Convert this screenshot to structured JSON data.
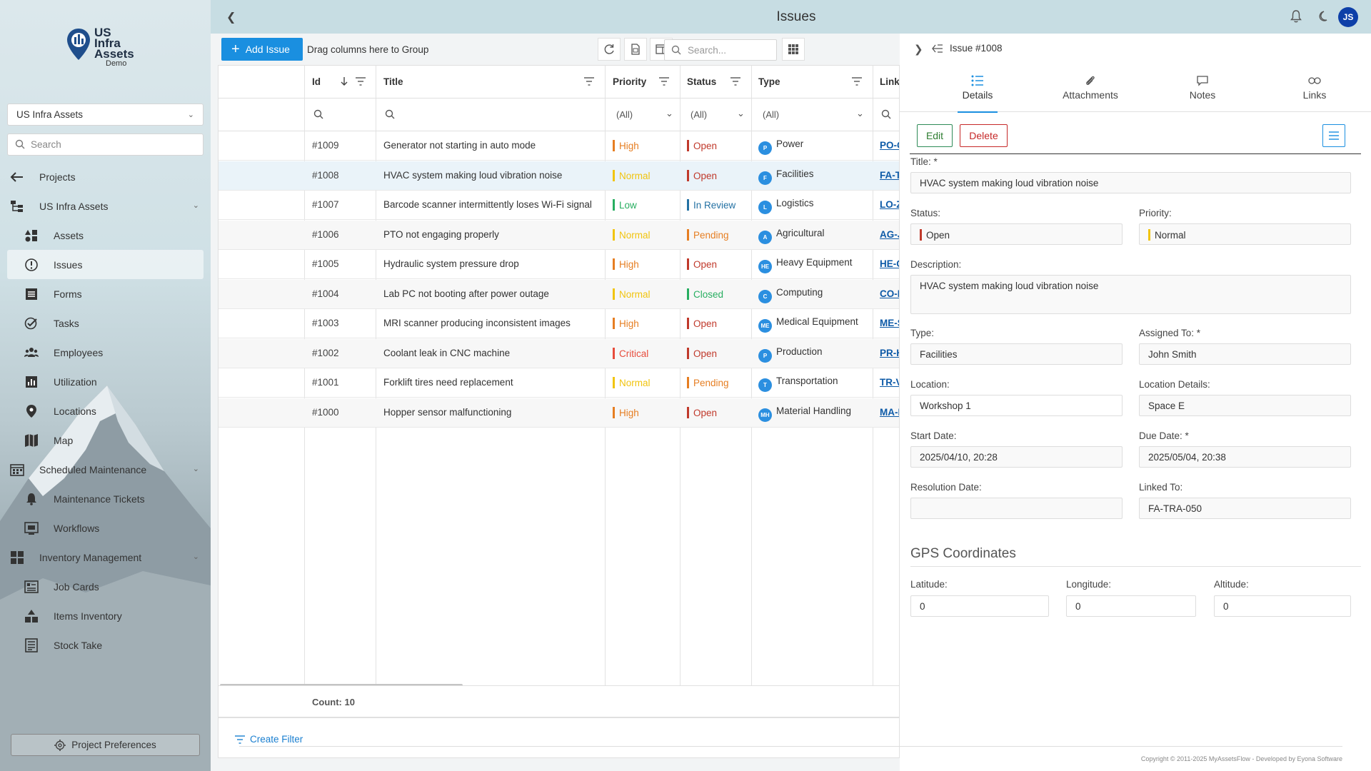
{
  "colors": {
    "accent": "#1a8fe0",
    "high": "#e67e22",
    "normal": "#f1c40f",
    "low": "#27ae60",
    "critical": "#e74c3c",
    "open": "#c0392b",
    "in_review": "#2471a3",
    "pending": "#e67e22",
    "closed": "#27ae60",
    "avatar": "#0d3fa8"
  },
  "header": {
    "title": "Issues",
    "avatar": "JS"
  },
  "sidebar": {
    "logo_line1": "US",
    "logo_line2": "Infra",
    "logo_line3": "Assets",
    "logo_demo": "Demo",
    "project_select": "US Infra Assets",
    "search_placeholder": "Search",
    "items": [
      {
        "label": "Projects",
        "icon": "arrow-left-icon"
      },
      {
        "label": "US Infra Assets",
        "icon": "hierarchy-icon"
      },
      {
        "label": "Assets",
        "icon": "shapes-icon"
      },
      {
        "label": "Issues",
        "icon": "alert-circle-icon"
      },
      {
        "label": "Forms",
        "icon": "form-icon"
      },
      {
        "label": "Tasks",
        "icon": "task-check-icon"
      },
      {
        "label": "Employees",
        "icon": "people-icon"
      },
      {
        "label": "Utilization",
        "icon": "chart-icon"
      },
      {
        "label": "Locations",
        "icon": "location-pin-icon"
      },
      {
        "label": "Map",
        "icon": "map-icon"
      },
      {
        "label": "Scheduled Maintenance",
        "icon": "calendar-grid-icon"
      },
      {
        "label": "Maintenance Tickets",
        "icon": "bell-icon"
      },
      {
        "label": "Workflows",
        "icon": "workflow-icon"
      },
      {
        "label": "Inventory Management",
        "icon": "inventory-icon"
      },
      {
        "label": "Job Cards",
        "icon": "job-card-icon"
      },
      {
        "label": "Items Inventory",
        "icon": "boxes-icon"
      },
      {
        "label": "Stock Take",
        "icon": "stock-list-icon"
      }
    ],
    "preferences": "Project Preferences"
  },
  "toolbar": {
    "add_label": "Add Issue",
    "group_hint": "Drag columns here to Group",
    "search_placeholder": "Search..."
  },
  "grid": {
    "columns": {
      "id": "Id",
      "title": "Title",
      "priority": "Priority",
      "status": "Status",
      "type": "Type",
      "links": "Links"
    },
    "filter_all": "(All)",
    "rows": [
      {
        "id": "#1009",
        "title": "Generator not starting in auto mode",
        "priority": "High",
        "status": "Open",
        "type_abbr": "P",
        "type": "Power",
        "link": "PO-GEN"
      },
      {
        "id": "#1008",
        "title": "HVAC system making loud vibration noise",
        "priority": "Normal",
        "status": "Open",
        "type_abbr": "F",
        "type": "Facilities",
        "link": "FA-TRA"
      },
      {
        "id": "#1007",
        "title": "Barcode scanner intermittently loses Wi-Fi signal",
        "priority": "Low",
        "status": "In Review",
        "type_abbr": "L",
        "type": "Logistics",
        "link": "LO-ZEB"
      },
      {
        "id": "#1006",
        "title": "PTO not engaging properly",
        "priority": "Normal",
        "status": "Pending",
        "type_abbr": "A",
        "type": "Agricultural",
        "link": "AG-JOH"
      },
      {
        "id": "#1005",
        "title": "Hydraulic system pressure drop",
        "priority": "High",
        "status": "Open",
        "type_abbr": "HE",
        "type": "Heavy Equipment",
        "link": "HE-CAT"
      },
      {
        "id": "#1004",
        "title": "Lab PC not booting after power outage",
        "priority": "Normal",
        "status": "Closed",
        "type_abbr": "C",
        "type": "Computing",
        "link": "CO-DEL"
      },
      {
        "id": "#1003",
        "title": "MRI scanner producing inconsistent images",
        "priority": "High",
        "status": "Open",
        "type_abbr": "ME",
        "type": "Medical Equipment",
        "link": "ME-SIE"
      },
      {
        "id": "#1002",
        "title": "Coolant leak in CNC machine",
        "priority": "Critical",
        "status": "Open",
        "type_abbr": "P",
        "type": "Production",
        "link": "PR-HAA"
      },
      {
        "id": "#1001",
        "title": "Forklift tires need replacement",
        "priority": "Normal",
        "status": "Pending",
        "type_abbr": "T",
        "type": "Transportation",
        "link": "TR-VOL"
      },
      {
        "id": "#1000",
        "title": "Hopper sensor malfunctioning",
        "priority": "High",
        "status": "Open",
        "type_abbr": "MH",
        "type": "Material Handling",
        "link": "MA-KOM"
      }
    ],
    "count": "Count: 10",
    "create_filter": "Create Filter"
  },
  "detail": {
    "header": "Issue #1008",
    "tabs": [
      "Details",
      "Attachments",
      "Notes",
      "Links"
    ],
    "edit": "Edit",
    "delete": "Delete",
    "title_label": "Title: *",
    "title_value": "HVAC system making loud vibration noise",
    "status_label": "Status:",
    "status_value": "Open",
    "priority_label": "Priority:",
    "priority_value": "Normal",
    "description_label": "Description:",
    "description_value": "HVAC system making loud vibration noise",
    "type_label": "Type:",
    "type_value": "Facilities",
    "assigned_label": "Assigned To: *",
    "assigned_value": "John Smith",
    "location_label": "Location:",
    "location_value": "Workshop 1",
    "location_details_label": "Location Details:",
    "location_details_value": "Space E",
    "start_label": "Start Date:",
    "start_value": "2025/04/10, 20:28",
    "due_label": "Due Date: *",
    "due_value": "2025/05/04, 20:38",
    "resolution_label": "Resolution Date:",
    "resolution_value": "",
    "linked_label": "Linked To:",
    "linked_value": "FA-TRA-050",
    "gps_title": "GPS Coordinates",
    "latitude_label": "Latitude:",
    "latitude_value": "0",
    "longitude_label": "Longitude:",
    "longitude_value": "0",
    "altitude_label": "Altitude:",
    "altitude_value": "0"
  },
  "copyright": "Copyright © 2011-2025 MyAssetsFlow - Developed by Eyona Software"
}
